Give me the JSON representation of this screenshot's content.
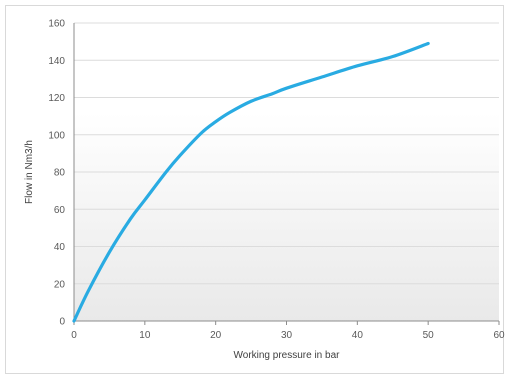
{
  "chart_data": {
    "type": "line",
    "title": "",
    "xlabel": "Working pressure in bar",
    "ylabel": "Flow in Nm3/h",
    "xlim": [
      0,
      60
    ],
    "ylim": [
      0,
      160
    ],
    "x_ticks": [
      0,
      10,
      20,
      30,
      40,
      50,
      60
    ],
    "y_ticks": [
      0,
      20,
      40,
      60,
      80,
      100,
      120,
      140,
      160
    ],
    "grid": "horizontal",
    "legend": "none",
    "series": [
      {
        "color": "#29abe2",
        "x": [
          0,
          2,
          5,
          8,
          10,
          13,
          15,
          18,
          20,
          22,
          25,
          28,
          30,
          35,
          40,
          45,
          50
        ],
        "y": [
          0,
          16,
          37,
          55,
          65,
          80,
          89,
          101,
          107,
          112,
          118,
          122,
          125,
          131,
          137,
          142,
          149
        ]
      }
    ],
    "colors": {
      "line": "#29abe2",
      "grid": "#dcdcdc",
      "axis": "#8c8c8c",
      "band_top": "#ffffff",
      "band_bottom": "#e9e9e9"
    }
  }
}
